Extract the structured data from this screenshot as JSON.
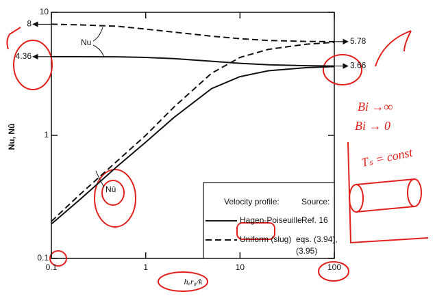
{
  "chart_data": {
    "type": "line",
    "y_label": "Nu, Nû",
    "x_label": "hₑr₀/k",
    "log_x": true,
    "log_y": true,
    "xlim": [
      0.1,
      100
    ],
    "xticks": [
      0.1,
      1,
      10,
      100
    ],
    "ylim": [
      0.1,
      10
    ],
    "yticks": [
      0.1,
      1,
      10
    ],
    "x": [
      0.1,
      0.2,
      0.5,
      1,
      2,
      5,
      10,
      20,
      50,
      100
    ],
    "legend_title": "Velocity profile:",
    "legend_source_title": "Source:",
    "series": [
      {
        "name": "Hagen-Poiseuille",
        "source": [
          "Ref. 16"
        ],
        "dashed": false,
        "color": "#111111",
        "nu": [
          4.36,
          4.36,
          4.35,
          4.3,
          4.2,
          4.0,
          3.85,
          3.75,
          3.68,
          3.66
        ],
        "nu_hat": [
          0.19,
          0.3,
          0.56,
          0.88,
          1.4,
          2.4,
          3.0,
          3.35,
          3.55,
          3.62
        ]
      },
      {
        "name": "Uniform (slug)",
        "source": [
          "eqs. (3.94),",
          "(3.95)"
        ],
        "dashed": true,
        "color": "#111111",
        "nu": [
          8,
          7.9,
          7.7,
          7.3,
          6.9,
          6.4,
          6.1,
          5.9,
          5.8,
          5.78
        ],
        "nu_hat": [
          0.2,
          0.33,
          0.62,
          1.0,
          1.7,
          3.2,
          4.3,
          5.0,
          5.5,
          5.7
        ]
      }
    ],
    "curve_labels": {
      "nu": "Nu",
      "nu_hat": "Nû"
    },
    "left_labels": [
      {
        "value": 8,
        "label": "8"
      },
      {
        "value": 4.36,
        "label": "4.36"
      }
    ],
    "right_labels": [
      {
        "value": 5.78,
        "label": "5.78"
      },
      {
        "value": 3.66,
        "label": "3.66"
      }
    ],
    "handwritten": [
      "Bi →∞",
      "Bi → 0",
      "Tₛ = const"
    ]
  }
}
